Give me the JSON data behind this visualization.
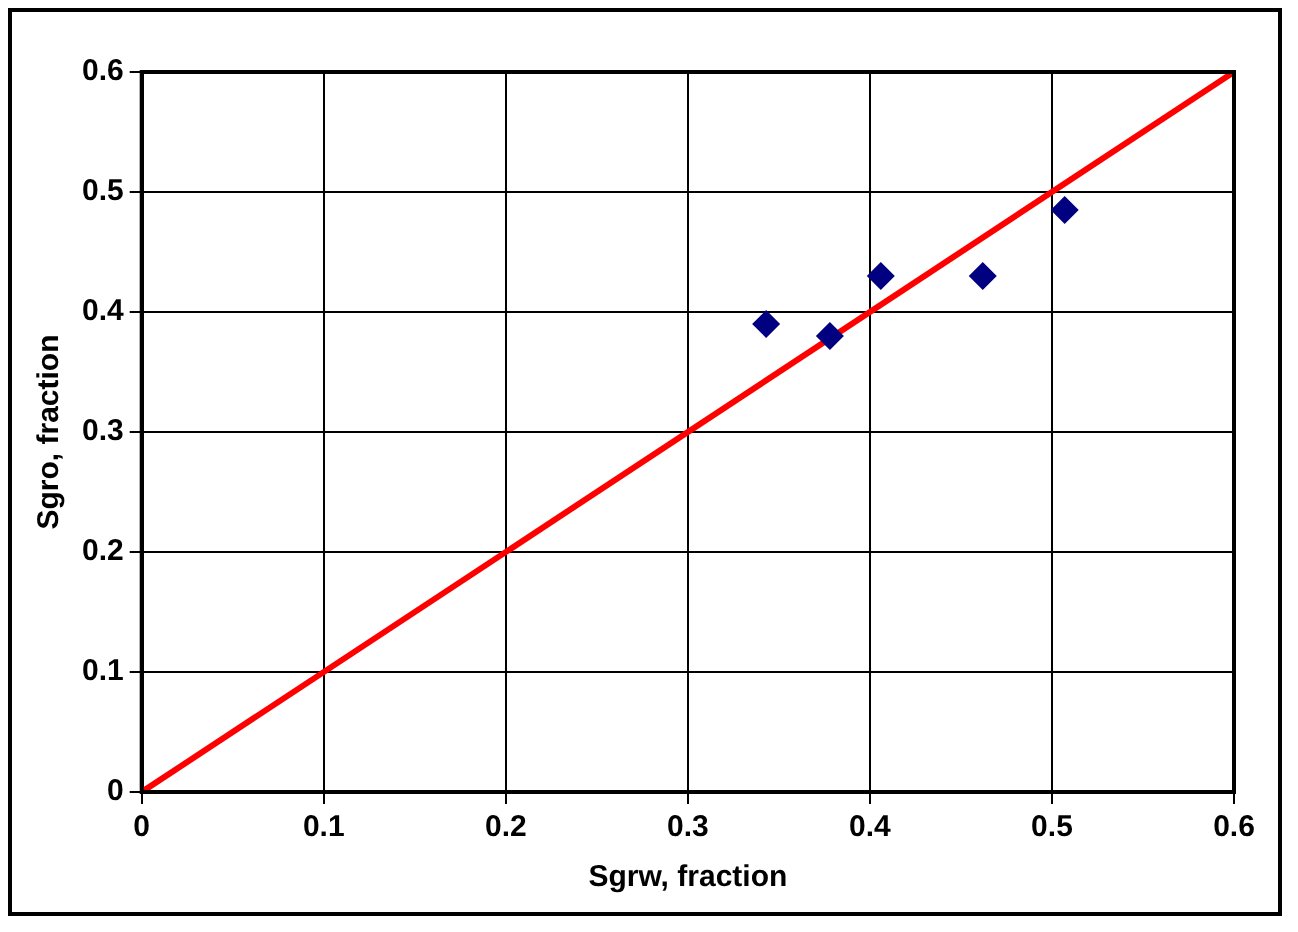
{
  "chart_data": {
    "type": "scatter",
    "xlabel": "Sgrw, fraction",
    "ylabel": "Sgro, fraction",
    "xlim": [
      0,
      0.6
    ],
    "xticks": [
      0,
      0.1,
      0.2,
      0.3,
      0.4,
      0.5,
      0.6
    ],
    "ylim": [
      0,
      0.6
    ],
    "yticks": [
      0,
      0.1,
      0.2,
      0.3,
      0.4,
      0.5,
      0.6
    ],
    "grid": true,
    "legend": false,
    "series": [
      {
        "marker": "diamond",
        "color": "#000080",
        "x": [
          0.343,
          0.378,
          0.406,
          0.462,
          0.507
        ],
        "values": [
          0.39,
          0.38,
          0.43,
          0.43,
          0.485
        ]
      },
      {
        "type": "line",
        "marker": "none",
        "color": "#ff0000",
        "x": [
          0,
          0.6
        ],
        "values": [
          0,
          0.6
        ]
      }
    ]
  }
}
